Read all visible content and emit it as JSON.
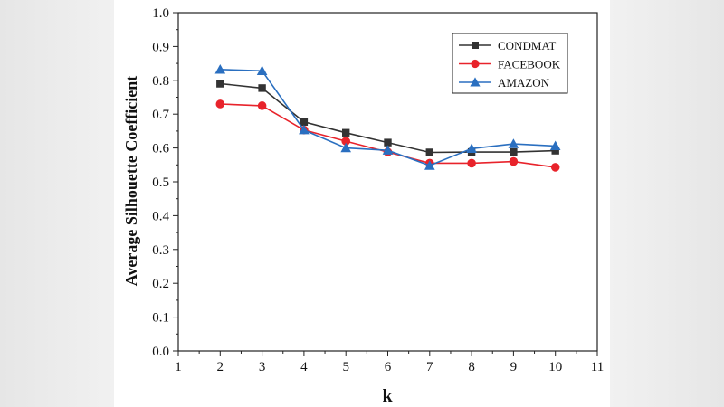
{
  "chart_data": {
    "type": "line",
    "title": "",
    "xlabel": "k",
    "ylabel": "Average Silhouette Coefficient",
    "xlim": [
      1,
      11
    ],
    "ylim": [
      0.0,
      1.0
    ],
    "x_ticks": [
      "1",
      "2",
      "3",
      "4",
      "5",
      "6",
      "7",
      "8",
      "9",
      "10",
      "11"
    ],
    "y_ticks": [
      "0.0",
      "0.1",
      "0.2",
      "0.3",
      "0.4",
      "0.5",
      "0.6",
      "0.7",
      "0.8",
      "0.9",
      "1.0"
    ],
    "grid": false,
    "legend_position": "top-right",
    "x": [
      2,
      3,
      4,
      5,
      6,
      7,
      8,
      9,
      10
    ],
    "series": [
      {
        "name": "CONDMAT",
        "color": "#333333",
        "marker": "square",
        "values": [
          0.79,
          0.777,
          0.677,
          0.645,
          0.616,
          0.587,
          0.588,
          0.588,
          0.592
        ]
      },
      {
        "name": "FACEBOOK",
        "color": "#e8232b",
        "marker": "circle",
        "values": [
          0.73,
          0.725,
          0.653,
          0.62,
          0.588,
          0.555,
          0.555,
          0.56,
          0.543
        ]
      },
      {
        "name": "AMAZON",
        "color": "#2a6fc0",
        "marker": "triangle",
        "values": [
          0.832,
          0.828,
          0.653,
          0.6,
          0.593,
          0.548,
          0.598,
          0.612,
          0.606
        ]
      }
    ]
  }
}
